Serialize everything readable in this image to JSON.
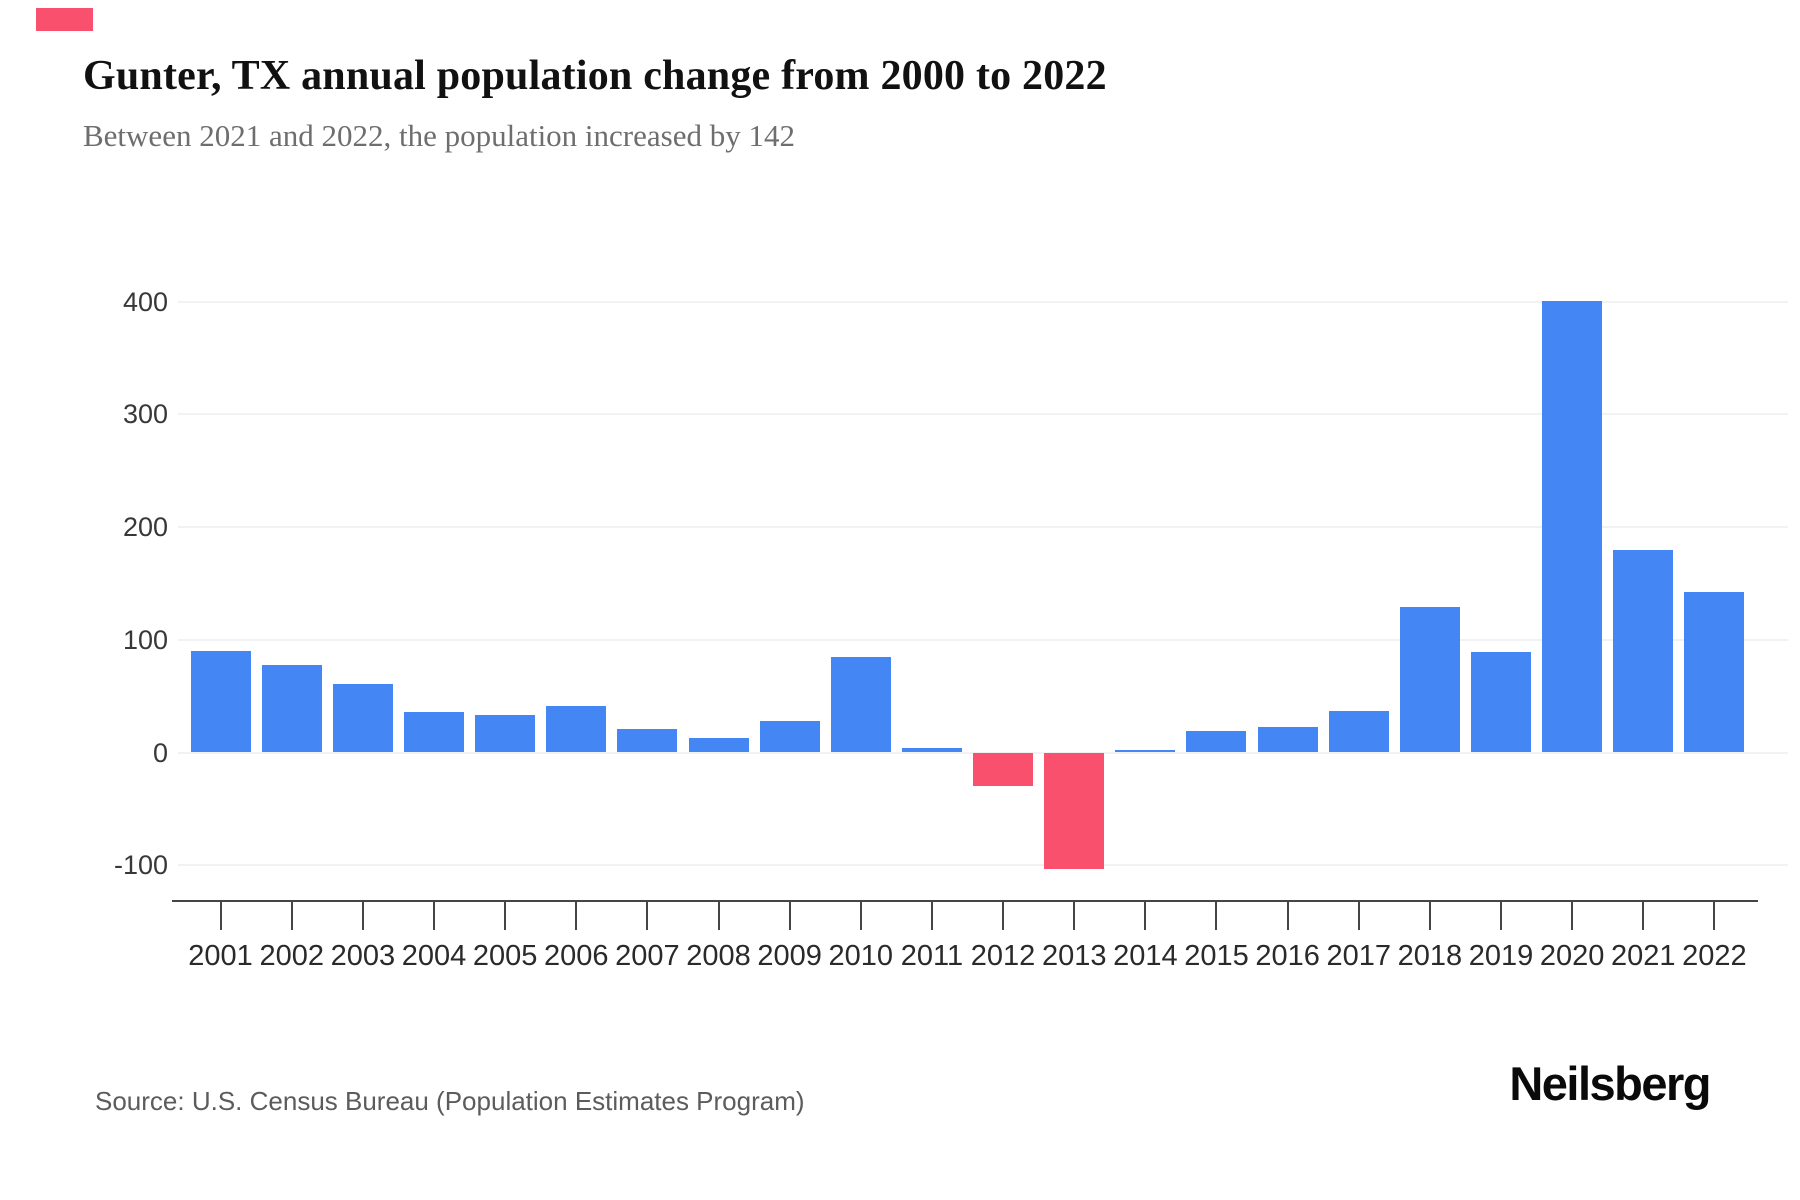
{
  "header": {
    "title": "Gunter, TX annual population change from 2000 to 2022",
    "subtitle": "Between 2021 and 2022, the population increased by 142"
  },
  "chart_data": {
    "type": "bar",
    "title": "Gunter, TX annual population change from 2000 to 2022",
    "series_name": "Annual population change",
    "categories": [
      "2001",
      "2002",
      "2003",
      "2004",
      "2005",
      "2006",
      "2007",
      "2008",
      "2009",
      "2010",
      "2011",
      "2012",
      "2013",
      "2014",
      "2015",
      "2016",
      "2017",
      "2018",
      "2019",
      "2020",
      "2021",
      "2022"
    ],
    "values": [
      90,
      78,
      61,
      36,
      33,
      41,
      21,
      13,
      28,
      85,
      4,
      -30,
      -103,
      2,
      19,
      23,
      37,
      129,
      89,
      401,
      180,
      142
    ],
    "yticks": [
      400,
      300,
      200,
      100,
      0,
      -100
    ],
    "ylim": [
      -135,
      430
    ],
    "xlabel": "",
    "ylabel": "",
    "grid": true,
    "legend": "none",
    "annotation_2022_change": 142
  },
  "footer": {
    "source": "Source: U.S. Census Bureau (Population Estimates Program)",
    "brand": "Neilsberg"
  },
  "colors": {
    "bar_positive": "#4486F4",
    "bar_negative": "#F9506E",
    "accent_mark": "#F9506E",
    "title_text": "#111111",
    "subtitle_text": "#6E6E6E",
    "axis_text": "#383838",
    "xaxis_text": "#2A2A2A",
    "gridline": "#F2F2F2",
    "axis_line": "#454545",
    "source_text": "#5C5C5C",
    "brand_text": "#0A0A0A"
  }
}
